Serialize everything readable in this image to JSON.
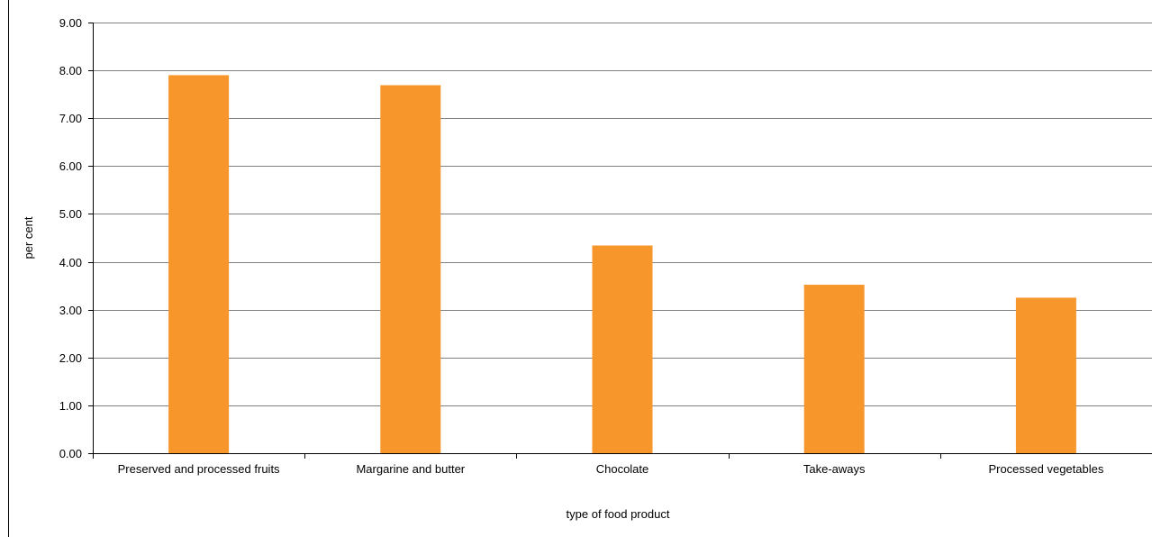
{
  "chart_data": {
    "type": "bar",
    "title": "",
    "xlabel": "type of food product",
    "ylabel": "per cent",
    "categories": [
      "Preserved and processed fruits",
      "Margarine and butter",
      "Chocolate",
      "Take-aways",
      "Processed vegetables"
    ],
    "values": [
      7.9,
      7.69,
      4.34,
      3.52,
      3.25
    ],
    "ylim": [
      0,
      9
    ],
    "yticks": [
      "0.00",
      "1.00",
      "2.00",
      "3.00",
      "4.00",
      "5.00",
      "6.00",
      "7.00",
      "8.00",
      "9.00"
    ],
    "grid": true,
    "legend": "none",
    "colors": {
      "bar": "#F7962B",
      "grid": "#808080",
      "axis": "#000000"
    }
  }
}
